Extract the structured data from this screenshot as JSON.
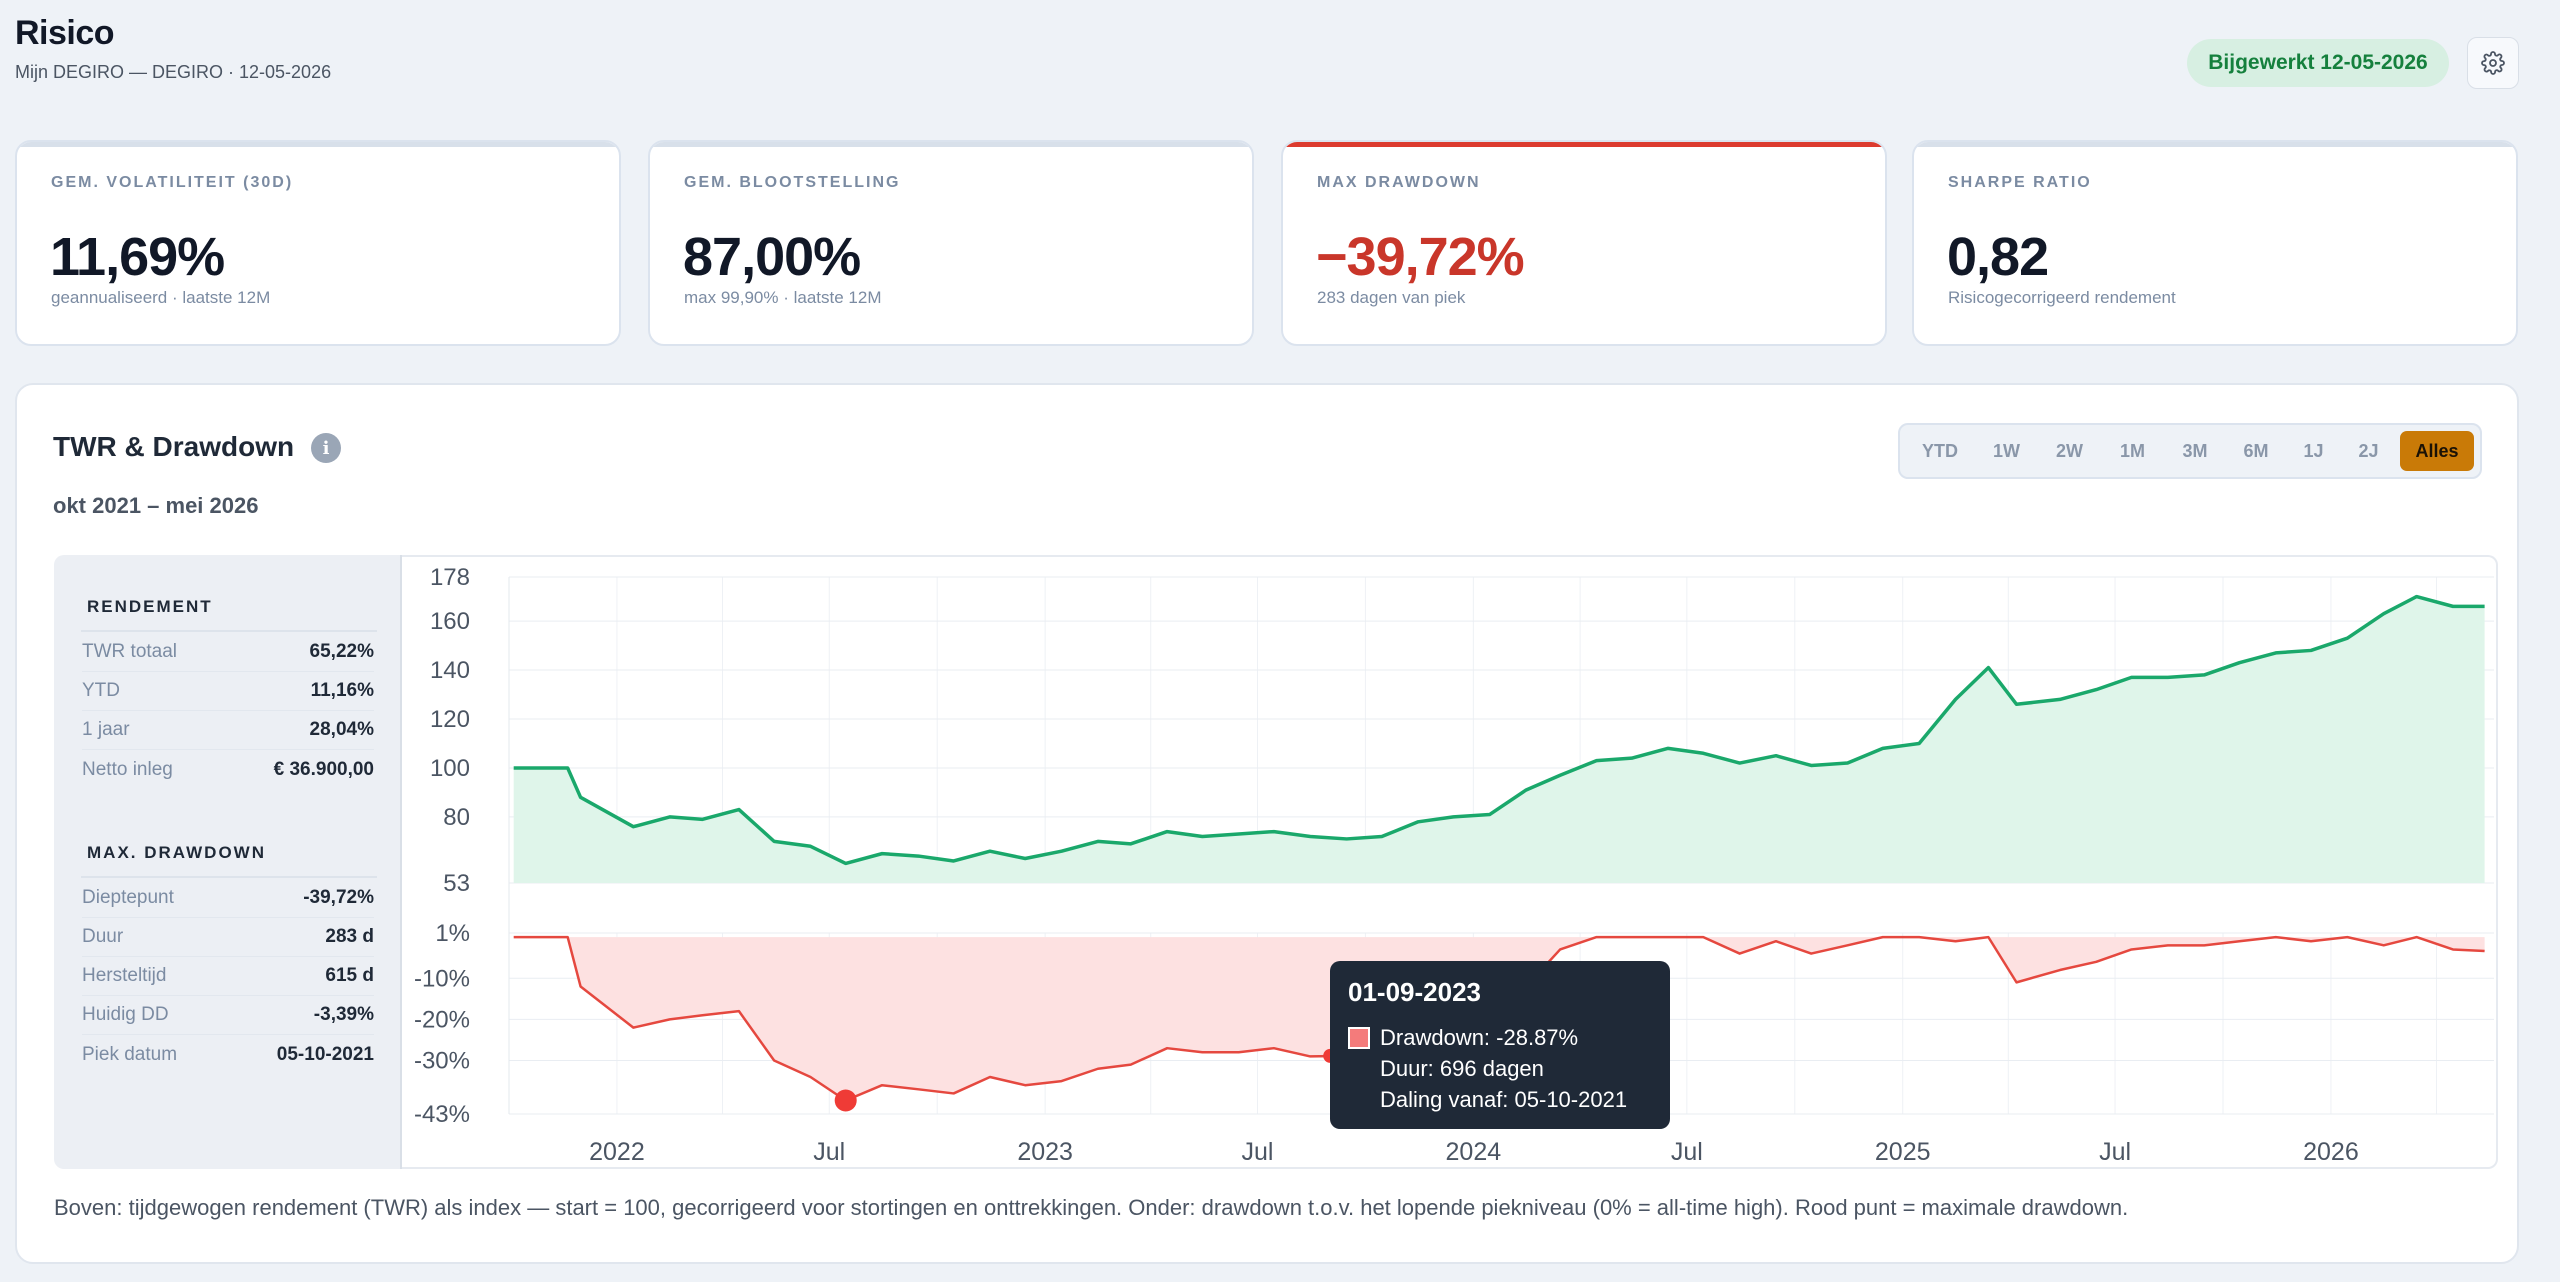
{
  "header": {
    "title": "Risico",
    "subtitle": "Mijn DEGIRO — DEGIRO · 12-05-2026",
    "updated_badge": "Bijgewerkt 12-05-2026",
    "settings_icon": "gear-icon"
  },
  "kpis": [
    {
      "label": "GEM. VOLATILITEIT (30D)",
      "value": "11,69%",
      "note": "geannualiseerd · laatste 12M"
    },
    {
      "label": "GEM. BLOOTSTELLING",
      "value": "87,00%",
      "note": "max 99,90% · laatste 12M"
    },
    {
      "label": "MAX DRAWDOWN",
      "value": "−39,72%",
      "note": "283 dagen van piek",
      "accent": "#dc3b2f"
    },
    {
      "label": "SHARPE RATIO",
      "value": "0,82",
      "note": "Risicogecorrigeerd rendement"
    }
  ],
  "card": {
    "title": "TWR & Drawdown",
    "info_icon": "info-icon",
    "info_glyph": "i",
    "period": "okt 2021 – mei 2026",
    "ranges": [
      "YTD",
      "1W",
      "2W",
      "1M",
      "3M",
      "6M",
      "1J",
      "2J",
      "Alles"
    ],
    "active_range": "Alles",
    "footnote": "Boven: tijdgewogen rendement (TWR) als index — start = 100, gecorrigeerd voor stortingen en onttrekkingen. Onder: drawdown t.o.v. het lopende piekniveau (0% = all-time high). Rood punt = maximale drawdown."
  },
  "sidebar": {
    "rendement_heading": "RENDEMENT",
    "rendement": [
      {
        "key": "TWR totaal",
        "value": "65,22%"
      },
      {
        "key": "YTD",
        "value": "11,16%"
      },
      {
        "key": "1 jaar",
        "value": "28,04%"
      },
      {
        "key": "Netto inleg",
        "value": "€ 36.900,00"
      }
    ],
    "drawdown_heading": "MAX. DRAWDOWN",
    "drawdown": [
      {
        "key": "Dieptepunt",
        "value": "-39,72%"
      },
      {
        "key": "Duur",
        "value": "283 d"
      },
      {
        "key": "Hersteltijd",
        "value": "615 d"
      },
      {
        "key": "Huidig DD",
        "value": "-3,39%"
      },
      {
        "key": "Piek datum",
        "value": "05-10-2021"
      }
    ]
  },
  "tooltip": {
    "date": "01-09-2023",
    "drawdown": "Drawdown: -28.87%",
    "duur": "Duur: 696 dagen",
    "daling": "Daling vanaf: 05-10-2021"
  },
  "chart_data": [
    {
      "type": "area",
      "name": "TWR index",
      "color": "#1aa86b",
      "fill": "#dff5ea",
      "ylim": [
        53,
        178
      ],
      "yticks": [
        53,
        80,
        100,
        120,
        140,
        160,
        178
      ],
      "x": [
        "2021-10-05",
        "2021-11-20",
        "2021-12-01",
        "2022-01-15",
        "2022-02-15",
        "2022-03-15",
        "2022-04-15",
        "2022-05-15",
        "2022-06-15",
        "2022-07-15",
        "2022-08-15",
        "2022-09-15",
        "2022-10-15",
        "2022-11-15",
        "2022-12-15",
        "2023-01-15",
        "2023-02-15",
        "2023-03-15",
        "2023-04-15",
        "2023-05-15",
        "2023-06-15",
        "2023-07-15",
        "2023-08-15",
        "2023-09-15",
        "2023-10-15",
        "2023-11-15",
        "2023-12-15",
        "2024-01-15",
        "2024-02-15",
        "2024-03-15",
        "2024-04-15",
        "2024-05-15",
        "2024-06-15",
        "2024-07-15",
        "2024-08-15",
        "2024-09-15",
        "2024-10-15",
        "2024-11-15",
        "2024-12-15",
        "2025-01-15",
        "2025-02-15",
        "2025-03-15",
        "2025-04-08",
        "2025-05-15",
        "2025-06-15",
        "2025-07-15",
        "2025-08-15",
        "2025-09-15",
        "2025-10-15",
        "2025-11-15",
        "2025-12-15",
        "2026-01-15",
        "2026-02-15",
        "2026-03-15",
        "2026-04-15",
        "2026-05-12"
      ],
      "values": [
        100,
        100,
        88,
        76,
        80,
        79,
        83,
        70,
        68,
        61,
        65,
        64,
        62,
        66,
        63,
        66,
        70,
        69,
        74,
        72,
        73,
        74,
        72,
        71,
        72,
        78,
        80,
        81,
        91,
        97,
        103,
        104,
        108,
        106,
        102,
        105,
        101,
        102,
        108,
        110,
        128,
        141,
        126,
        128,
        132,
        137,
        137,
        138,
        143,
        147,
        148,
        153,
        163,
        170,
        166,
        166
      ]
    },
    {
      "type": "area",
      "name": "Drawdown",
      "color": "#e5483f",
      "fill": "#fde1e1",
      "ylim": [
        -43,
        1
      ],
      "yticks": [
        -43,
        -30,
        -20,
        -10,
        1
      ],
      "x_tick_labels": [
        "2022",
        "Jul",
        "2023",
        "Jul",
        "2024",
        "Jul",
        "2025",
        "Jul",
        "2026"
      ],
      "x": [
        "2021-10-05",
        "2021-11-20",
        "2021-12-01",
        "2022-01-15",
        "2022-02-15",
        "2022-03-15",
        "2022-04-15",
        "2022-05-15",
        "2022-06-15",
        "2022-07-15",
        "2022-08-15",
        "2022-09-15",
        "2022-10-15",
        "2022-11-15",
        "2022-12-15",
        "2023-01-15",
        "2023-02-15",
        "2023-03-15",
        "2023-04-15",
        "2023-05-15",
        "2023-06-15",
        "2023-07-15",
        "2023-08-15",
        "2023-09-15",
        "2023-10-15",
        "2023-11-15",
        "2023-12-15",
        "2024-01-15",
        "2024-02-15",
        "2024-03-15",
        "2024-04-15",
        "2024-05-15",
        "2024-06-15",
        "2024-07-15",
        "2024-08-15",
        "2024-09-15",
        "2024-10-15",
        "2024-11-15",
        "2024-12-15",
        "2025-01-15",
        "2025-02-15",
        "2025-03-15",
        "2025-04-08",
        "2025-05-15",
        "2025-06-15",
        "2025-07-15",
        "2025-08-15",
        "2025-09-15",
        "2025-10-15",
        "2025-11-15",
        "2025-12-15",
        "2026-01-15",
        "2026-02-15",
        "2026-03-15",
        "2026-04-15",
        "2026-05-12"
      ],
      "values": [
        0,
        0,
        -12,
        -22,
        -20,
        -19,
        -18,
        -30,
        -34,
        -39.72,
        -36,
        -37,
        -38,
        -34,
        -36,
        -35,
        -32,
        -31,
        -27,
        -28,
        -28,
        -27,
        -29,
        -28.87,
        -28,
        -24,
        -22,
        -21,
        -12,
        -3,
        0,
        0,
        0,
        0,
        -4,
        -1,
        -4,
        -2,
        0,
        0,
        -1,
        0,
        -11,
        -8,
        -6,
        -3,
        -2,
        -2,
        -1,
        0,
        -1,
        0,
        -2,
        0,
        -3,
        -3.39
      ],
      "markers": [
        {
          "x": "2022-07-15",
          "y": -39.72,
          "label": "max drawdown"
        },
        {
          "x": "2023-09-01",
          "y": -28.87
        }
      ]
    }
  ]
}
